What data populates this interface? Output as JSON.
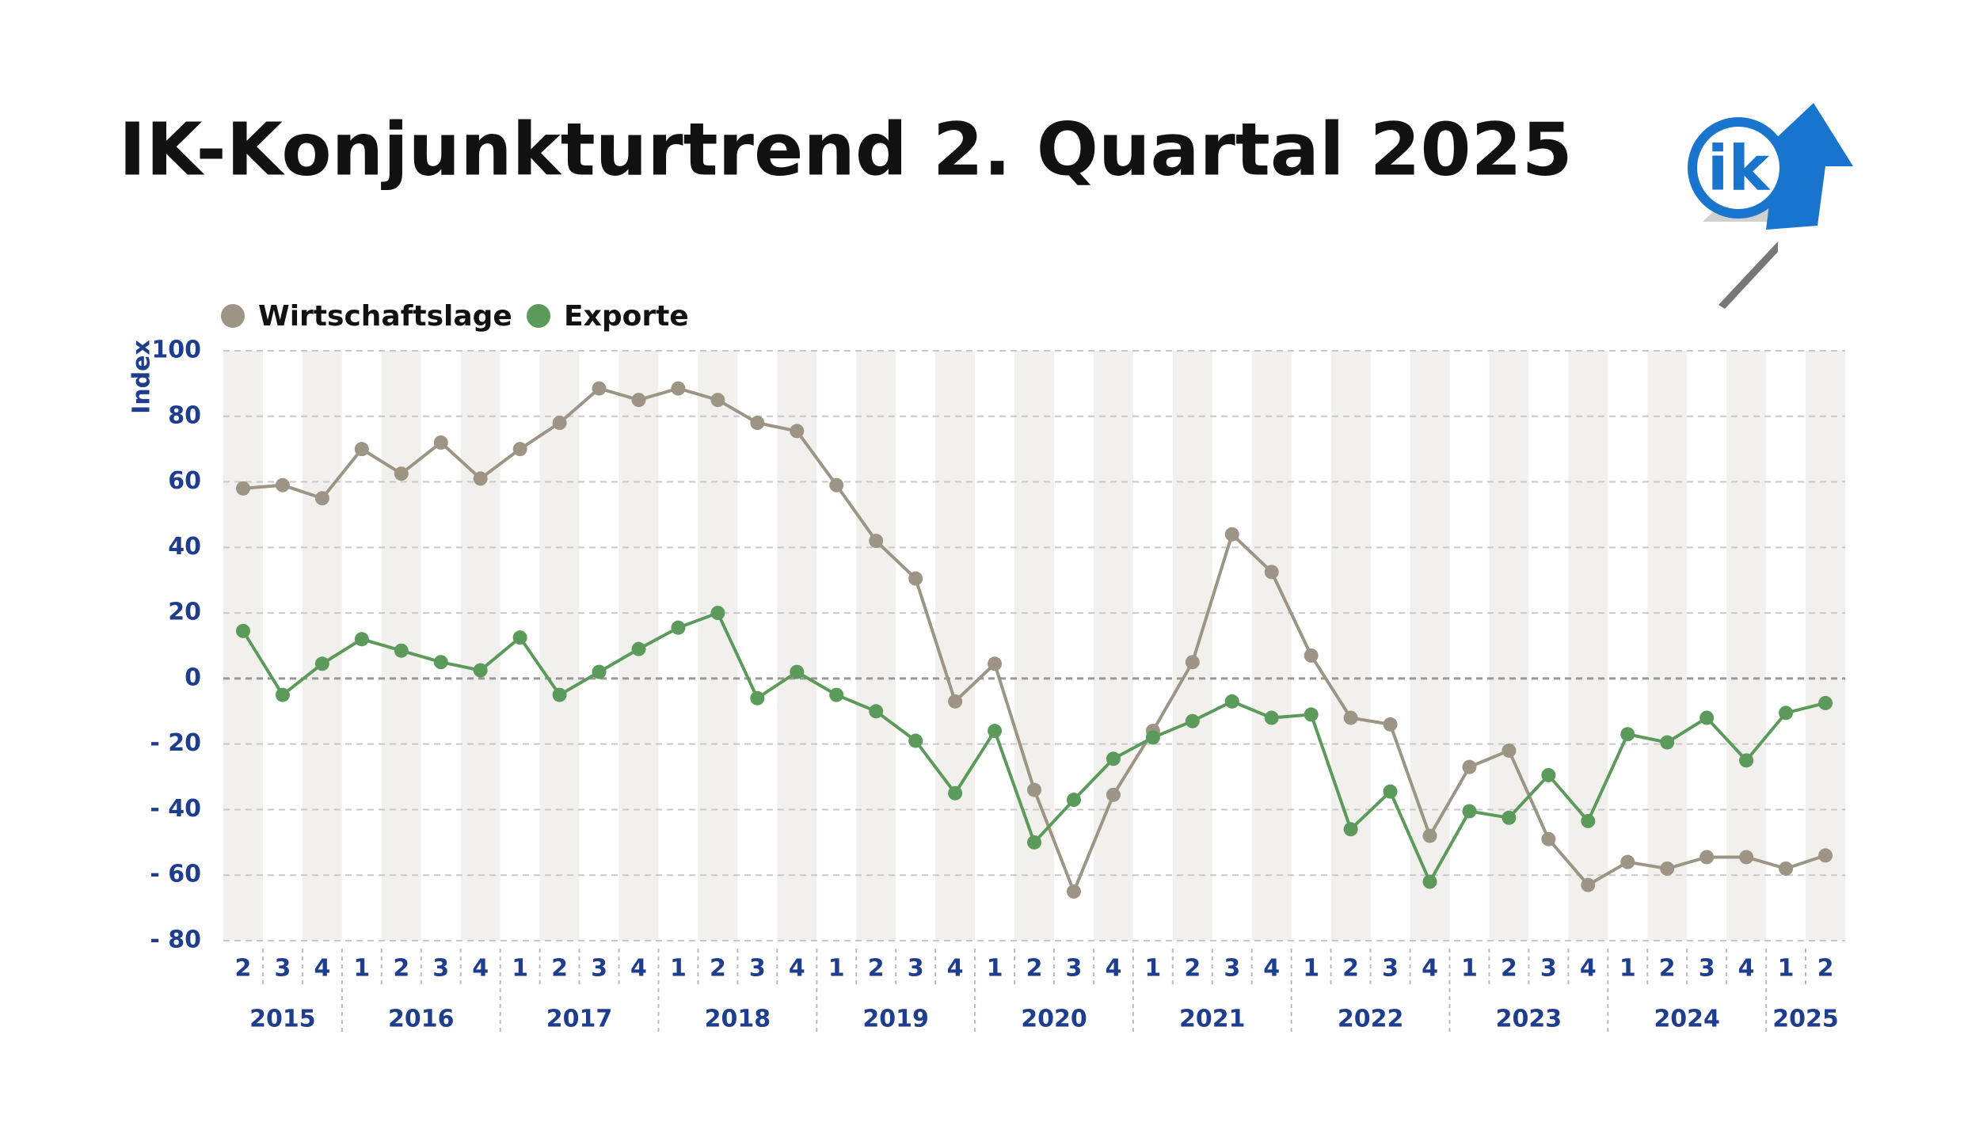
{
  "chart_data": {
    "type": "line",
    "title": "IK-Konjunkturtrend 2. Quartal 2025",
    "y_label": "Index",
    "years": [
      {
        "label": "2015",
        "quarters": [
          "2",
          "3",
          "4"
        ]
      },
      {
        "label": "2016",
        "quarters": [
          "1",
          "2",
          "3",
          "4"
        ]
      },
      {
        "label": "2017",
        "quarters": [
          "1",
          "2",
          "3",
          "4"
        ]
      },
      {
        "label": "2018",
        "quarters": [
          "1",
          "2",
          "3",
          "4"
        ]
      },
      {
        "label": "2019",
        "quarters": [
          "1",
          "2",
          "3",
          "4"
        ]
      },
      {
        "label": "2020",
        "quarters": [
          "1",
          "2",
          "3",
          "4"
        ]
      },
      {
        "label": "2021",
        "quarters": [
          "1",
          "2",
          "3",
          "4"
        ]
      },
      {
        "label": "2022",
        "quarters": [
          "1",
          "2",
          "3",
          "4"
        ]
      },
      {
        "label": "2023",
        "quarters": [
          "1",
          "2",
          "3",
          "4"
        ]
      },
      {
        "label": "2024",
        "quarters": [
          "1",
          "2",
          "3",
          "4"
        ]
      },
      {
        "label": "2025",
        "quarters": [
          "1",
          "2"
        ]
      }
    ],
    "series": [
      {
        "name": "Wirtschaftslage",
        "color": "#9c9484",
        "values": [
          58,
          59,
          55,
          70,
          62.5,
          72,
          61,
          70,
          78,
          88.5,
          85,
          88.5,
          85,
          78,
          75.5,
          59,
          42,
          30.5,
          -7,
          4.5,
          -34,
          -65,
          -35.5,
          -16,
          5,
          44,
          32.5,
          7,
          -12,
          -14,
          -48,
          -27,
          -22,
          -49,
          -63,
          -56,
          -58,
          -54.5,
          -54.5,
          -58,
          -54
        ]
      },
      {
        "name": "Exporte",
        "color": "#5b9a5a",
        "values": [
          14.5,
          -5,
          4.5,
          12,
          8.5,
          5,
          2.5,
          12.5,
          -5,
          2,
          9,
          15.5,
          20,
          -6,
          2,
          -5,
          -10,
          -19,
          -35,
          -16,
          -50,
          -37,
          -24.5,
          -18,
          -13,
          -7,
          -12,
          -11,
          -46,
          -34.5,
          -62,
          -40.5,
          -42.5,
          -29.5,
          -43.5,
          -17,
          -19.5,
          -12,
          -25,
          -10.5,
          -7.5
        ]
      }
    ],
    "ylim": [
      -80,
      100
    ],
    "yticks": [
      {
        "value": -80,
        "label": "- 80"
      },
      {
        "value": -60,
        "label": "- 60"
      },
      {
        "value": -40,
        "label": "- 40"
      },
      {
        "value": -20,
        "label": "- 20"
      },
      0,
      20,
      40,
      60,
      80,
      100
    ],
    "grid": true
  }
}
